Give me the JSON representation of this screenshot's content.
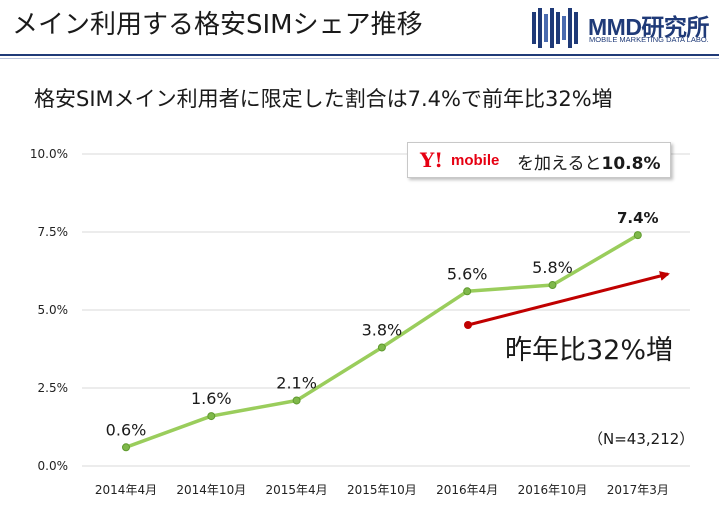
{
  "header": {
    "title": "メイン利用する格安SIMシェア推移",
    "logo_text": "MMD研究所",
    "logo_subtext": "MOBILE MARKETING DATA LABO."
  },
  "subtitle": "格安SIMメイン利用者に限定した割合は7.4%で前年比32%増",
  "callout": {
    "brand_mark": "Y!",
    "brand_name": "mobile",
    "text": "を加えると",
    "value": "10.8%"
  },
  "growth_label": "昨年比32%増",
  "sample_size": "（N=43,212）",
  "colors": {
    "line": "#9acd5c",
    "marker": "#7fb84a",
    "arrow": "#c00000",
    "grid": "#d9d9d9",
    "brand": "#1f3a78"
  },
  "chart_data": {
    "type": "line",
    "categories": [
      "2014年4月",
      "2014年10月",
      "2015年4月",
      "2015年10月",
      "2016年4月",
      "2016年10月",
      "2017年3月"
    ],
    "values": [
      0.6,
      1.6,
      2.1,
      3.8,
      5.6,
      5.8,
      7.4
    ],
    "data_labels": [
      "0.6%",
      "1.6%",
      "2.1%",
      "3.8%",
      "5.6%",
      "5.8%",
      "7.4%"
    ],
    "yticks": [
      "0.0%",
      "2.5%",
      "5.0%",
      "7.5%",
      "10.0%"
    ],
    "ytick_values": [
      0,
      2.5,
      5,
      7.5,
      10
    ],
    "ylim": [
      0,
      10
    ],
    "grid": true,
    "legend": "none"
  }
}
